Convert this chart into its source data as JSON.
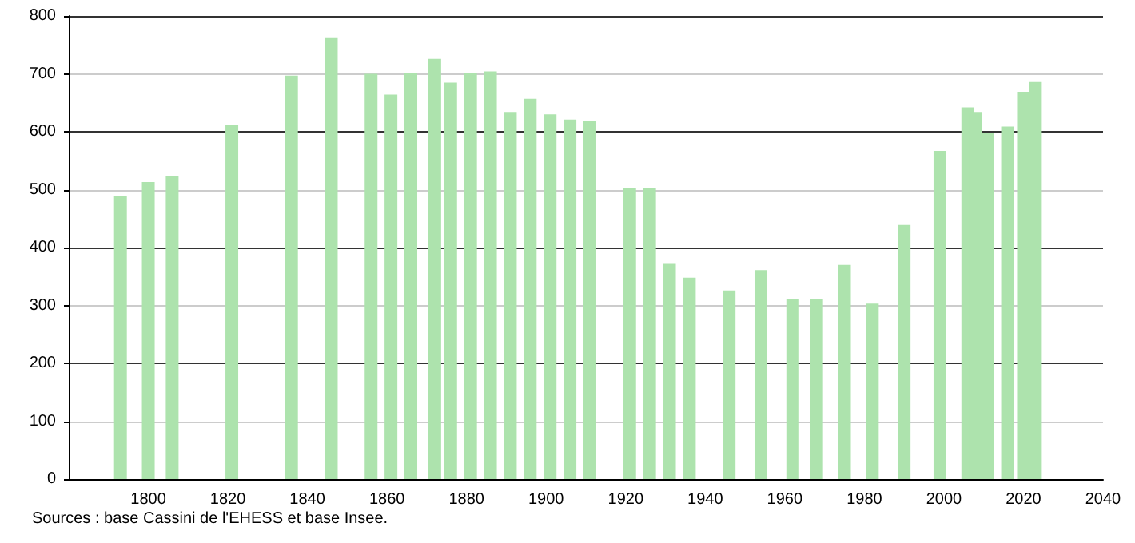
{
  "chart_data": {
    "type": "bar",
    "color": "#ade3ad",
    "x": [
      1793,
      1800,
      1806,
      1821,
      1836,
      1846,
      1856,
      1861,
      1866,
      1872,
      1876,
      1881,
      1886,
      1891,
      1896,
      1901,
      1906,
      1911,
      1921,
      1926,
      1931,
      1936,
      1946,
      1954,
      1962,
      1968,
      1975,
      1982,
      1990,
      1999,
      2006,
      2008,
      2011,
      2016,
      2020,
      2023
    ],
    "values": [
      489,
      513,
      524,
      612,
      697,
      763,
      700,
      664,
      701,
      726,
      685,
      701,
      704,
      634,
      657,
      630,
      621,
      618,
      502,
      502,
      373,
      348,
      326,
      361,
      311,
      311,
      370,
      303,
      439,
      567,
      642,
      634,
      598,
      609,
      669,
      686
    ],
    "xlim": [
      1780,
      2040
    ],
    "xticks": [
      1800,
      1820,
      1840,
      1860,
      1880,
      1900,
      1920,
      1940,
      1960,
      1980,
      2000,
      2020,
      2040
    ],
    "ylim": [
      0,
      800
    ],
    "yticks": [
      0,
      100,
      200,
      300,
      400,
      500,
      600,
      700,
      800
    ],
    "grid": "y",
    "annotations": [
      "Sources : base Cassini de l'EHESS et base Insee."
    ]
  }
}
